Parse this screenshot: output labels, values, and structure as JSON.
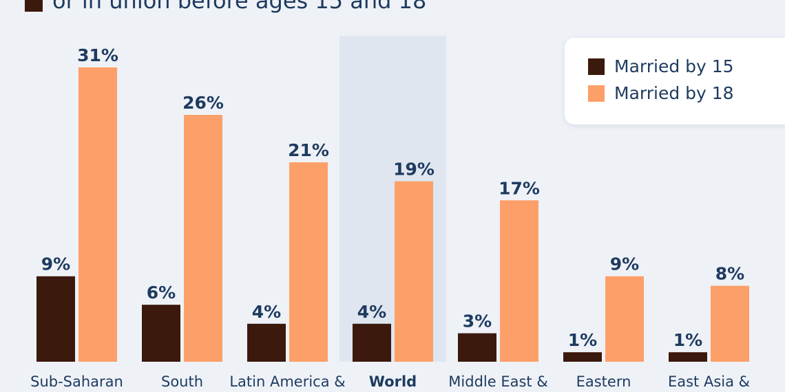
{
  "subtitle": "or in union before ages 15 and 18",
  "colors": {
    "background": "#eef2f7",
    "married_by_15": "#3b190d",
    "married_by_18": "#fd9f68",
    "highlight": "#dfe6ef",
    "text": "#1e3a5f"
  },
  "legend": {
    "position": "top-right",
    "items": [
      {
        "label": "Married by 15",
        "color": "#3b190d"
      },
      {
        "label": "Married by 18",
        "color": "#fd9f68"
      }
    ]
  },
  "chart_data": {
    "type": "bar",
    "categories": [
      "Sub-Saharan",
      "South",
      "Latin America &",
      "World",
      "Middle East &",
      "Eastern",
      "East Asia &"
    ],
    "highlight_category": "World",
    "series": [
      {
        "name": "Married by 15",
        "values": [
          9,
          6,
          4,
          4,
          3,
          1,
          1
        ],
        "labels": [
          "9%",
          "6%",
          "4%",
          "4%",
          "3%",
          "1%",
          "1%"
        ]
      },
      {
        "name": "Married by 18",
        "values": [
          31,
          26,
          21,
          19,
          17,
          9,
          8
        ],
        "labels": [
          "31%",
          "26%",
          "21%",
          "19%",
          "17%",
          "9%",
          "8%"
        ]
      }
    ],
    "ylim": [
      0,
      31
    ],
    "grid": false
  }
}
